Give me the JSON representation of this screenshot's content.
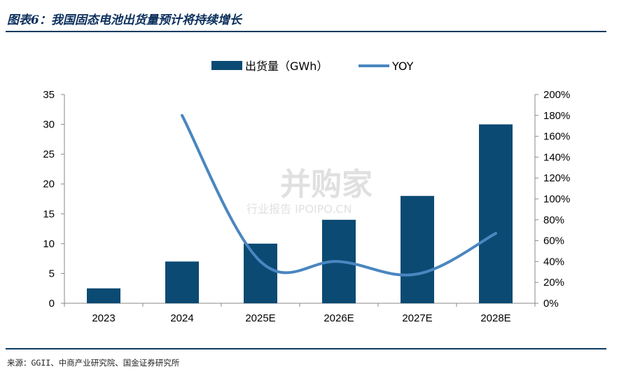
{
  "figure": {
    "title": "图表6：我国固态电池出货量预计将持续增长",
    "source": "来源：GGII、中商产业研究院、国金证券研究所"
  },
  "watermark": {
    "main": "并购家",
    "sub": "行业报告 IPOIPO.CN"
  },
  "colors": {
    "bar": "#0b4a73",
    "line": "#4a86c0",
    "rule": "#0b3b5e"
  },
  "chart_data": {
    "type": "bar",
    "categories": [
      "2023",
      "2024",
      "2025E",
      "2026E",
      "2027E",
      "2028E"
    ],
    "series": [
      {
        "name": "出货量（GWh）",
        "type": "bar",
        "axis": "left",
        "values": [
          2.5,
          7,
          10,
          14,
          18,
          30
        ]
      },
      {
        "name": "YOY",
        "type": "line",
        "axis": "right",
        "values": [
          null,
          180,
          40,
          40,
          28,
          67
        ]
      }
    ],
    "ylim_left": [
      0,
      35
    ],
    "yticks_left": [
      "0",
      "5",
      "10",
      "15",
      "20",
      "25",
      "30",
      "35"
    ],
    "ylim_right": [
      0,
      200
    ],
    "yticks_right": [
      "0%",
      "20%",
      "40%",
      "60%",
      "80%",
      "100%",
      "120%",
      "140%",
      "160%",
      "180%",
      "200%"
    ],
    "legend_position": "top-center",
    "grid": false
  }
}
